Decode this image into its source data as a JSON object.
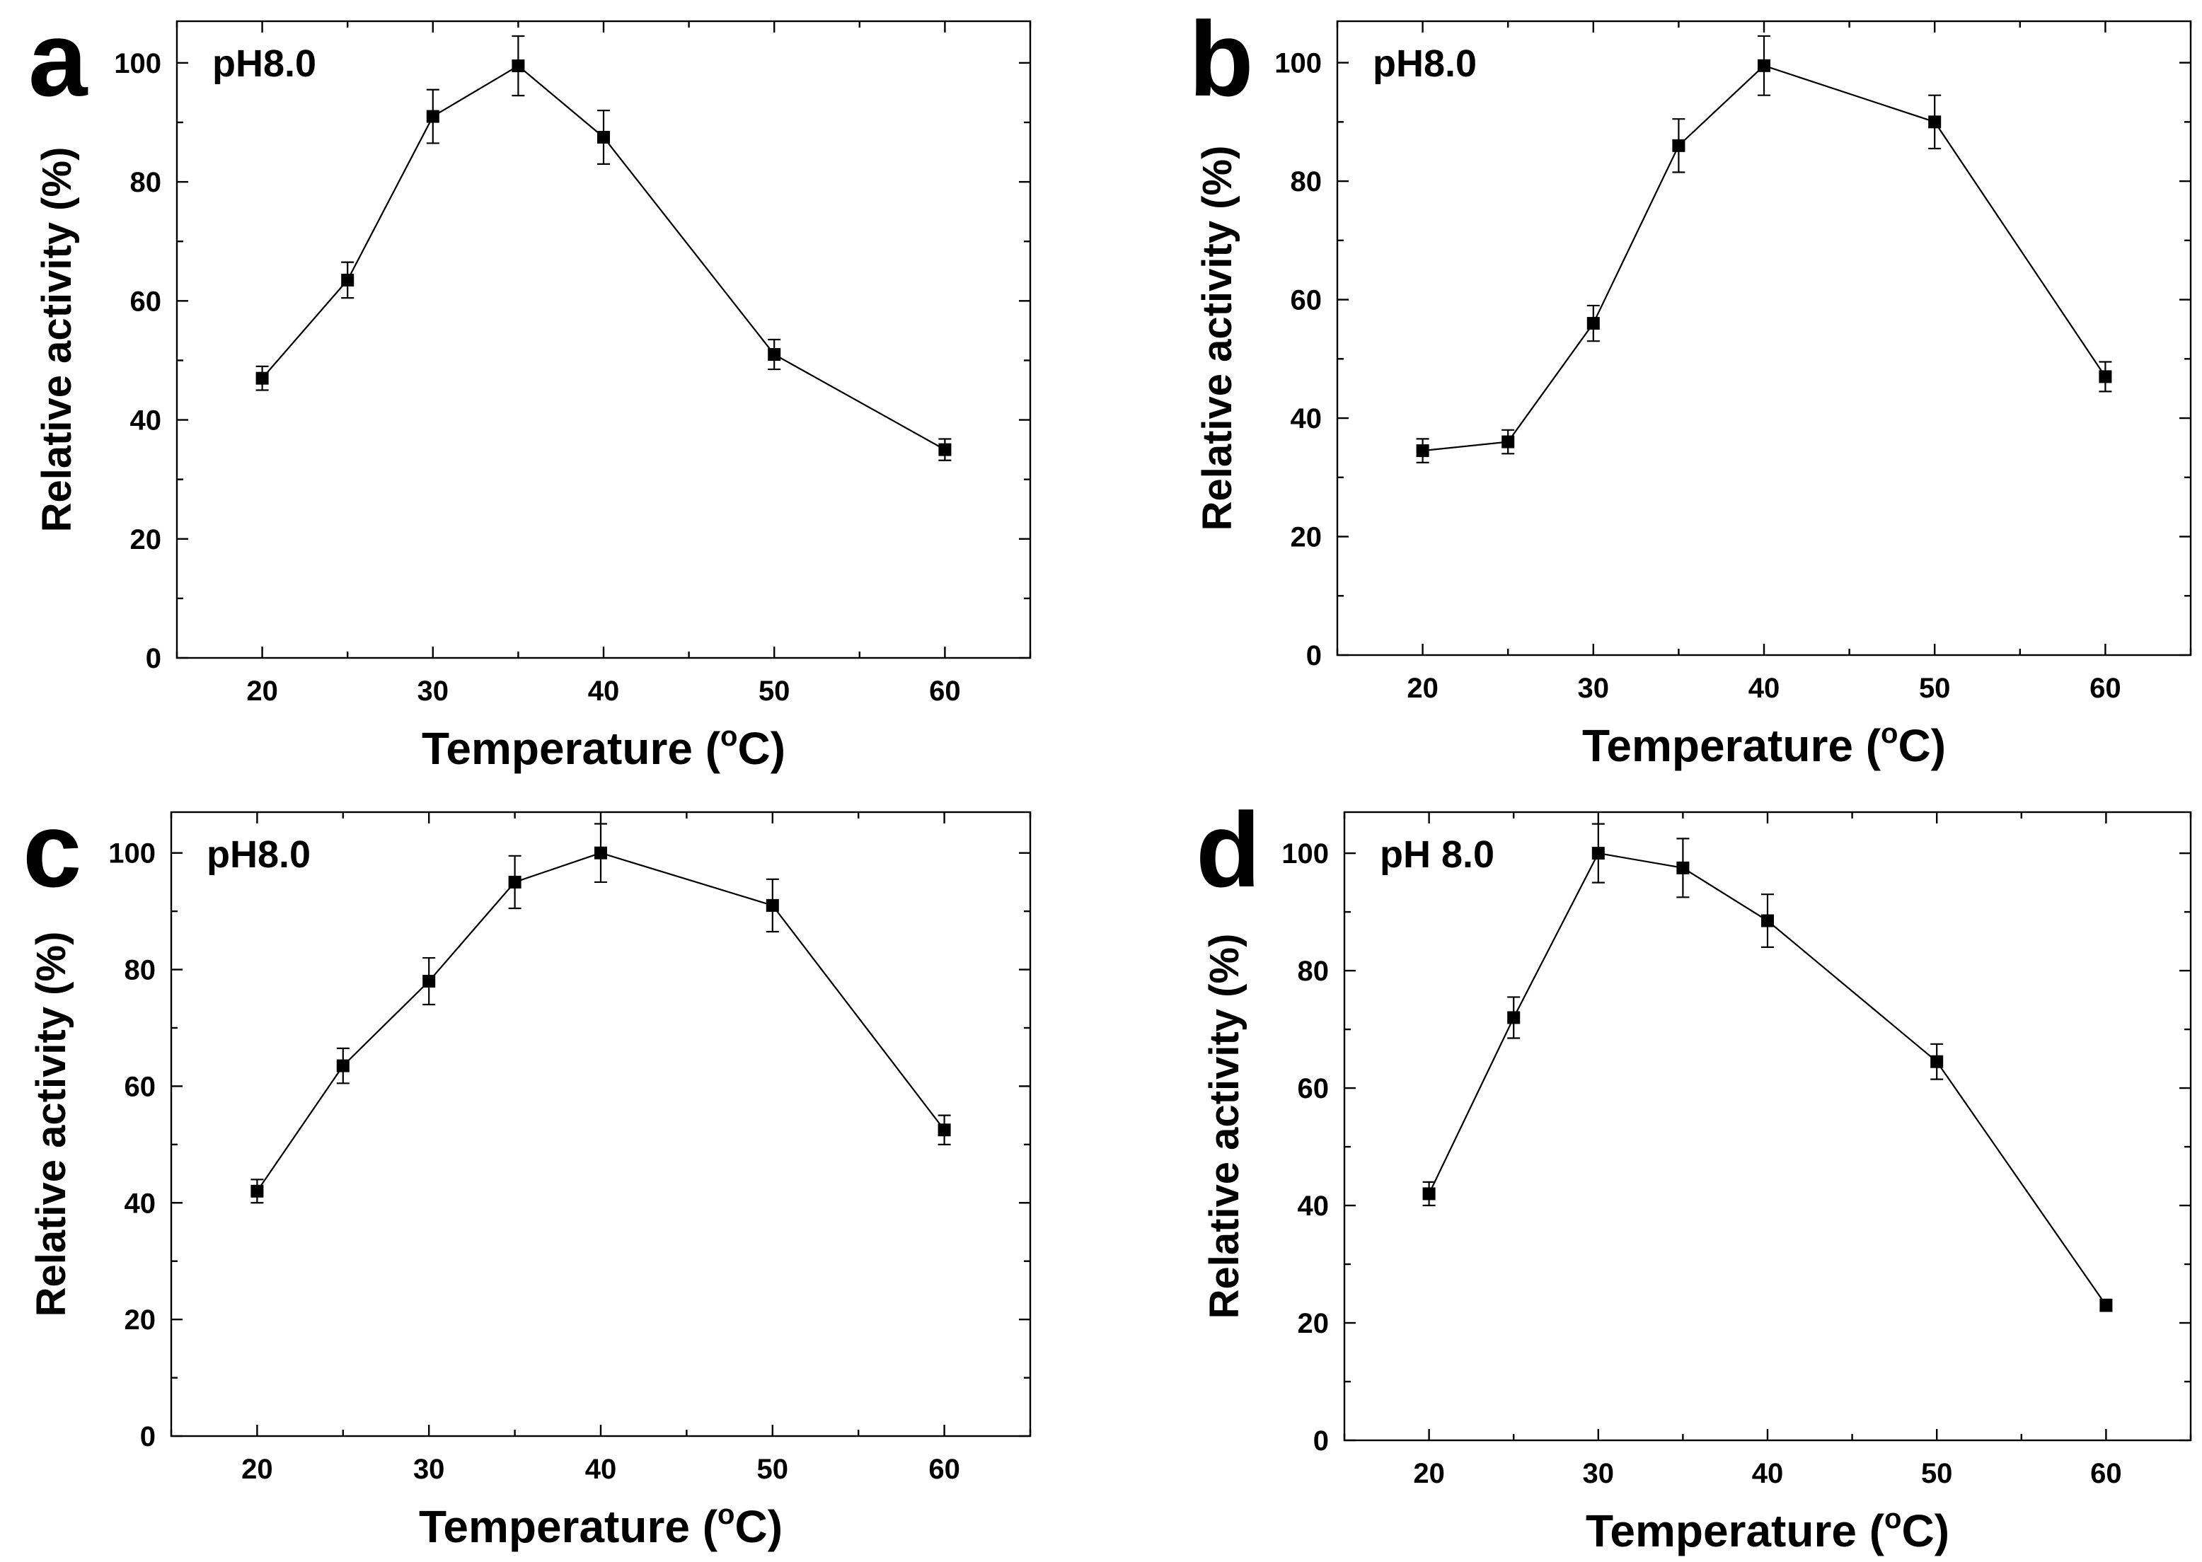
{
  "chart_data": [
    {
      "panel_label": "a",
      "type": "line",
      "annotation": "pH8.0",
      "xlabel_main": "Temperature (",
      "xlabel_sup": "o",
      "xlabel_end": "C)",
      "ylabel": "Relative activity (%)",
      "xlim": [
        15,
        65
      ],
      "ylim": [
        0,
        107
      ],
      "xticks": [
        20,
        30,
        40,
        50,
        60
      ],
      "yticks": [
        0,
        20,
        40,
        60,
        80,
        100
      ],
      "x": [
        20,
        25,
        30,
        35,
        40,
        50,
        60
      ],
      "y": [
        47,
        63.5,
        91,
        99.5,
        87.5,
        51,
        35
      ],
      "err": [
        2,
        3,
        4.5,
        5,
        4.5,
        2.5,
        1.8
      ]
    },
    {
      "panel_label": "b",
      "type": "line",
      "annotation": "pH8.0",
      "xlabel_main": "Temperature (",
      "xlabel_sup": "o",
      "xlabel_end": "C)",
      "ylabel": "Relative activity (%)",
      "xlim": [
        15,
        65
      ],
      "ylim": [
        0,
        107
      ],
      "xticks": [
        20,
        30,
        40,
        50,
        60
      ],
      "yticks": [
        0,
        20,
        40,
        60,
        80,
        100
      ],
      "x": [
        20,
        25,
        30,
        35,
        40,
        50,
        60
      ],
      "y": [
        34.5,
        36,
        56,
        86,
        99.5,
        90,
        47
      ],
      "err": [
        2,
        2,
        3,
        4.5,
        5,
        4.5,
        2.5
      ]
    },
    {
      "panel_label": "c",
      "type": "line",
      "annotation": "pH8.0",
      "xlabel_main": "Temperature (",
      "xlabel_sup": "o",
      "xlabel_end": "C)",
      "ylabel": "Relative activity (%)",
      "xlim": [
        15,
        65
      ],
      "ylim": [
        0,
        107
      ],
      "xticks": [
        20,
        30,
        40,
        50,
        60
      ],
      "yticks": [
        0,
        20,
        40,
        60,
        80,
        100
      ],
      "x": [
        20,
        25,
        30,
        35,
        40,
        50,
        60
      ],
      "y": [
        42,
        63.5,
        78,
        95,
        100,
        91,
        52.5
      ],
      "err": [
        2,
        3,
        4,
        4.5,
        5,
        4.5,
        2.5
      ]
    },
    {
      "panel_label": "d",
      "type": "line",
      "annotation": "pH 8.0",
      "xlabel_main": "Temperature (",
      "xlabel_sup": "o",
      "xlabel_end": "C)",
      "ylabel": "Relative activity (%)",
      "xlim": [
        15,
        65
      ],
      "ylim": [
        0,
        107
      ],
      "xticks": [
        20,
        30,
        40,
        50,
        60
      ],
      "yticks": [
        0,
        20,
        40,
        60,
        80,
        100
      ],
      "x": [
        20,
        25,
        30,
        35,
        40,
        50,
        60
      ],
      "y": [
        42,
        72,
        100,
        97.5,
        88.5,
        64.5,
        23
      ],
      "err": [
        2,
        3.5,
        5,
        5,
        4.5,
        3,
        1
      ]
    }
  ]
}
